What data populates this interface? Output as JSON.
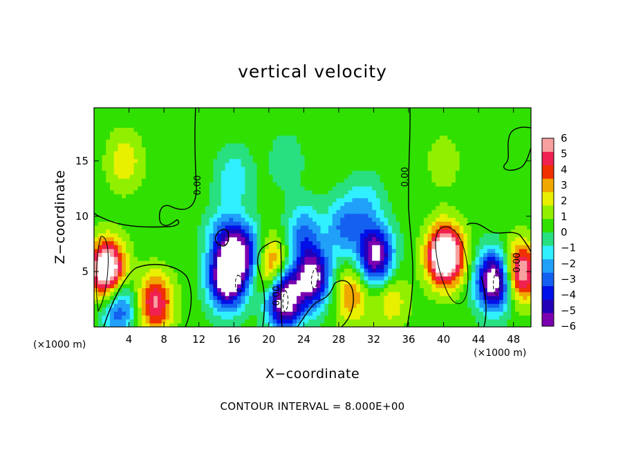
{
  "chart_data": {
    "type": "heatmap",
    "title": "vertical velocity",
    "xlabel": "X−coordinate",
    "ylabel": "Z−coordinate",
    "x_unit": "(×1000 m)",
    "x_unit_right": "(×1000 m)",
    "xlim": [
      0,
      50
    ],
    "ylim": [
      0,
      19.8
    ],
    "x_ticks": [
      4,
      8,
      12,
      16,
      20,
      24,
      28,
      32,
      36,
      40,
      44,
      48
    ],
    "y_ticks": [
      5,
      10,
      15
    ],
    "footer": "CONTOUR INTERVAL = 8.000E+00",
    "zero_contour_labels": [
      "0.00",
      "0.00",
      "0.00",
      "0.00"
    ],
    "colorbar": {
      "ticks": [
        "6",
        "5",
        "4",
        "3",
        "2",
        "1",
        "0",
        "−1",
        "−2",
        "−3",
        "−4",
        "−5",
        "−6"
      ],
      "range": [
        -6,
        6
      ],
      "colors": [
        "#7a00b0",
        "#2200b8",
        "#0010e8",
        "#1460f0",
        "#20a0f8",
        "#30f0ff",
        "#28e080",
        "#30e000",
        "#90f000",
        "#e8f000",
        "#f0a800",
        "#f03000",
        "#f02050",
        "#f8a0a0"
      ]
    },
    "features": [
      {
        "x": 1.5,
        "z": 5.2,
        "w": 8
      },
      {
        "x": 2.8,
        "z": 1.8,
        "w": -4
      },
      {
        "x": 7.0,
        "z": 2.2,
        "w": 5
      },
      {
        "x": 15.2,
        "z": 4.3,
        "w": -8
      },
      {
        "x": 16.0,
        "z": 7.5,
        "w": -3
      },
      {
        "x": 17.5,
        "z": 6.5,
        "w": -4
      },
      {
        "x": 20.2,
        "z": 5.5,
        "w": 4
      },
      {
        "x": 21.8,
        "z": 2.5,
        "w": -8
      },
      {
        "x": 25.0,
        "z": 4.5,
        "w": -7
      },
      {
        "x": 24.0,
        "z": 8.5,
        "w": -3
      },
      {
        "x": 28.5,
        "z": 9.0,
        "w": -3
      },
      {
        "x": 29.5,
        "z": 3.0,
        "w": 3
      },
      {
        "x": 32.2,
        "z": 6.5,
        "w": -7
      },
      {
        "x": 31.0,
        "z": 11.0,
        "w": -2
      },
      {
        "x": 34.0,
        "z": 2.5,
        "w": 2
      },
      {
        "x": 40.2,
        "z": 6.5,
        "w": 9
      },
      {
        "x": 45.8,
        "z": 4.2,
        "w": -8
      },
      {
        "x": 48.8,
        "z": 5.0,
        "w": 6
      },
      {
        "x": 3.5,
        "z": 15.0,
        "w": 2
      },
      {
        "x": 16.0,
        "z": 13.5,
        "w": -2
      },
      {
        "x": 14.5,
        "z": 8.0,
        "w": -2
      },
      {
        "x": 40.0,
        "z": 15.0,
        "w": 1
      },
      {
        "x": 22.0,
        "z": 15.0,
        "w": -1
      }
    ]
  }
}
